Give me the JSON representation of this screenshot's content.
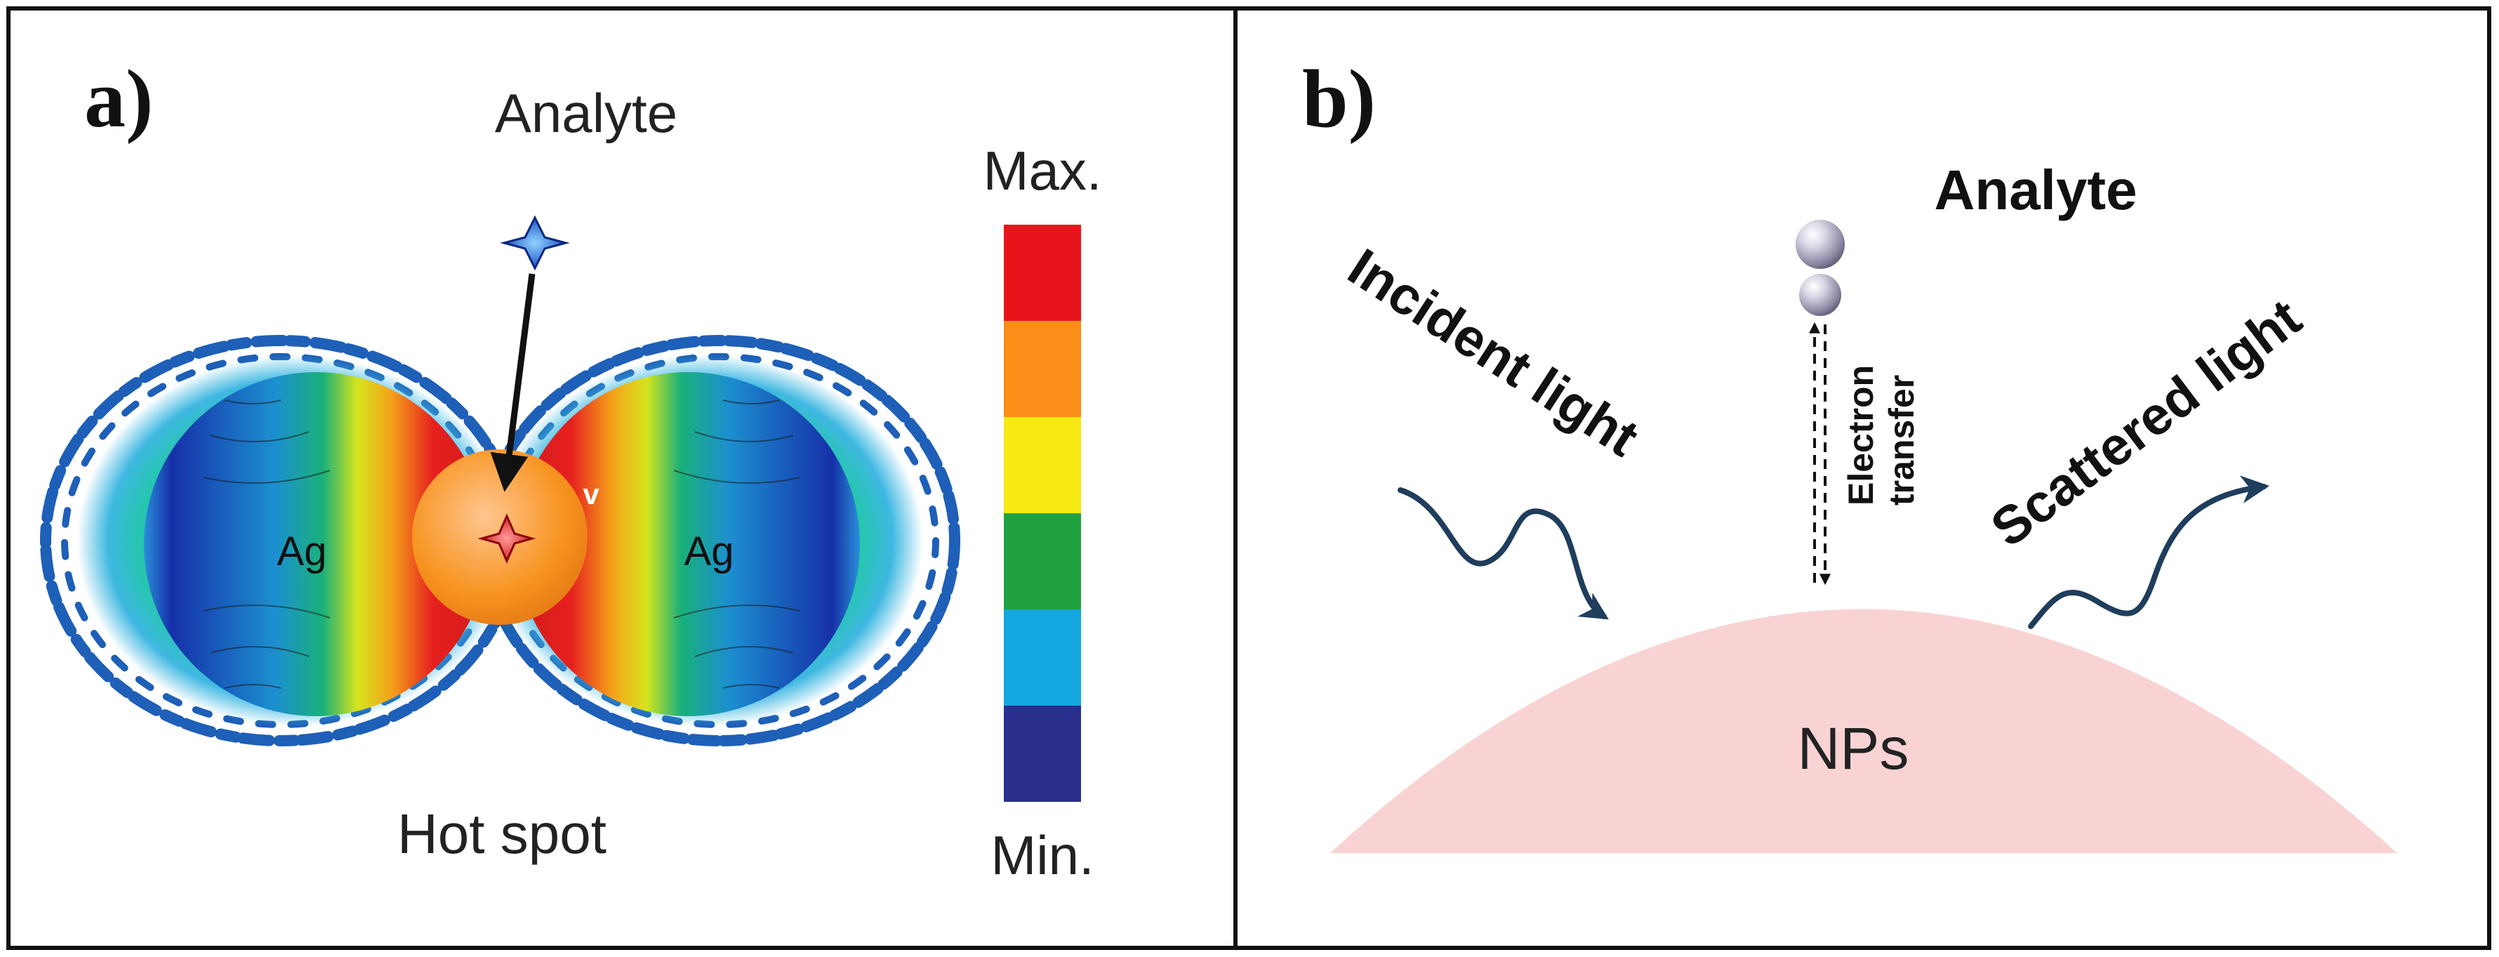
{
  "panel_a": {
    "label": "a)",
    "analyte_label": "Analyte",
    "particle_label_left": "Ag",
    "particle_label_right": "Ag",
    "gap_marker": "v",
    "hotspot_label": "Hot spot",
    "scale_max": "Max.",
    "scale_min": "Min.",
    "scale_colors": [
      "#e8141c",
      "#fb8e19",
      "#f6ea12",
      "#21a241",
      "#15a7df",
      "#2a2f8d"
    ]
  },
  "panel_b": {
    "label": "b)",
    "analyte_label": "Analyte",
    "incident_label": "Incident light",
    "scattered_label": "Scattered light",
    "electron_label_line1": "Electron",
    "electron_label_line2": "transfer",
    "np_label": "NPs",
    "np_color": "#f9d3d3",
    "wave_color": "#1f3d5c"
  }
}
